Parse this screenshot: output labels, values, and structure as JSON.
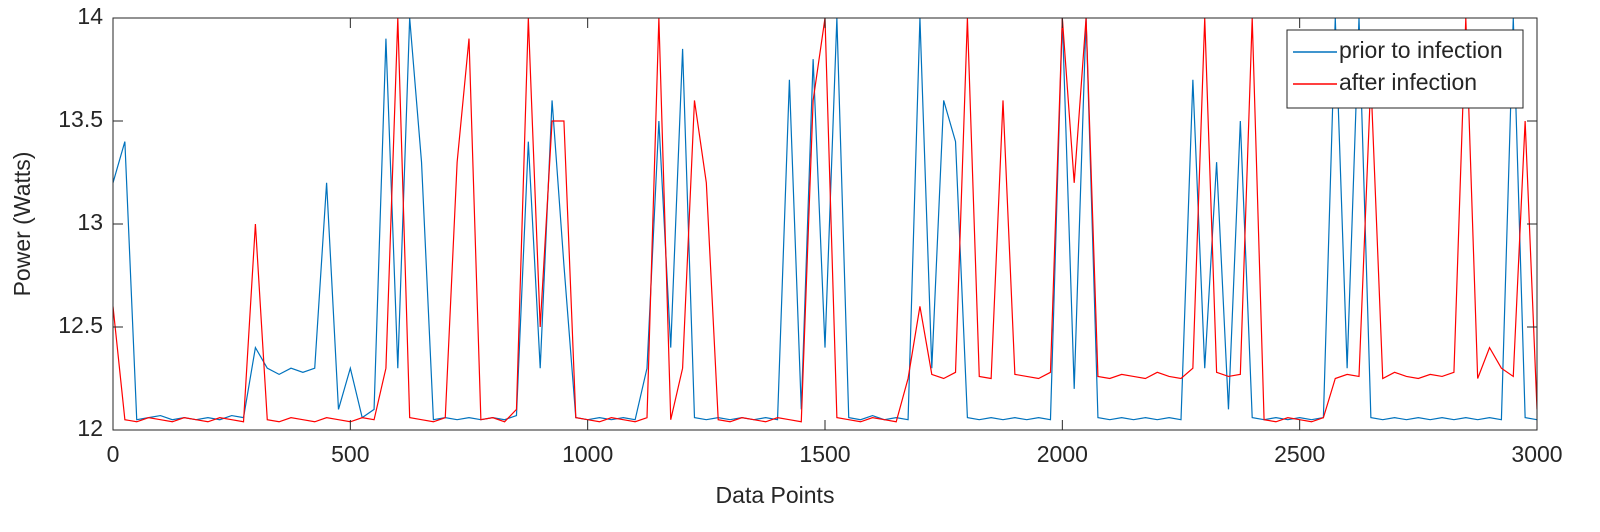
{
  "chart_data": {
    "type": "line",
    "xlabel": "Data Points",
    "ylabel": "Power (Watts)",
    "x": [
      0,
      25,
      50,
      75,
      100,
      125,
      150,
      175,
      200,
      225,
      250,
      275,
      300,
      325,
      350,
      375,
      400,
      425,
      450,
      475,
      500,
      525,
      550,
      575,
      600,
      625,
      650,
      675,
      700,
      725,
      750,
      775,
      800,
      825,
      850,
      875,
      900,
      925,
      950,
      975,
      1000,
      1025,
      1050,
      1075,
      1100,
      1125,
      1150,
      1175,
      1200,
      1225,
      1250,
      1275,
      1300,
      1325,
      1350,
      1375,
      1400,
      1425,
      1450,
      1475,
      1500,
      1525,
      1550,
      1575,
      1600,
      1625,
      1650,
      1675,
      1700,
      1725,
      1750,
      1775,
      1800,
      1825,
      1850,
      1875,
      1900,
      1925,
      1950,
      1975,
      2000,
      2025,
      2050,
      2075,
      2100,
      2125,
      2150,
      2175,
      2200,
      2225,
      2250,
      2275,
      2300,
      2325,
      2350,
      2375,
      2400,
      2425,
      2450,
      2475,
      2500,
      2525,
      2550,
      2575,
      2600,
      2625,
      2650,
      2675,
      2700,
      2725,
      2750,
      2775,
      2800,
      2825,
      2850,
      2875,
      2900,
      2925,
      2950,
      2975,
      3000
    ],
    "series": [
      {
        "name": "prior to infection",
        "color": "#0072bd",
        "values": [
          13.2,
          13.4,
          12.05,
          12.06,
          12.07,
          12.05,
          12.06,
          12.05,
          12.06,
          12.05,
          12.07,
          12.06,
          12.4,
          12.3,
          12.27,
          12.3,
          12.28,
          12.3,
          13.2,
          12.1,
          12.3,
          12.06,
          12.1,
          13.9,
          12.3,
          14,
          13.3,
          12.05,
          12.06,
          12.05,
          12.06,
          12.05,
          12.06,
          12.05,
          12.07,
          13.4,
          12.3,
          13.6,
          12.8,
          12.06,
          12.05,
          12.06,
          12.05,
          12.06,
          12.05,
          12.3,
          13.5,
          12.4,
          13.85,
          12.06,
          12.05,
          12.06,
          12.05,
          12.06,
          12.05,
          12.06,
          12.05,
          13.7,
          12.1,
          13.8,
          12.4,
          14,
          12.06,
          12.05,
          12.07,
          12.05,
          12.06,
          12.05,
          14,
          12.3,
          13.6,
          13.4,
          12.06,
          12.05,
          12.06,
          12.05,
          12.06,
          12.05,
          12.06,
          12.05,
          14,
          12.2,
          14,
          12.06,
          12.05,
          12.06,
          12.05,
          12.06,
          12.05,
          12.06,
          12.05,
          13.7,
          12.3,
          13.3,
          12.1,
          13.5,
          12.06,
          12.05,
          12.06,
          12.05,
          12.06,
          12.05,
          12.06,
          14,
          12.3,
          14,
          12.06,
          12.05,
          12.06,
          12.05,
          12.06,
          12.05,
          12.06,
          12.05,
          12.06,
          12.05,
          12.06,
          12.05,
          14,
          12.06,
          12.05
        ]
      },
      {
        "name": "after infection",
        "color": "#ff0000",
        "values": [
          12.6,
          12.05,
          12.04,
          12.06,
          12.05,
          12.04,
          12.06,
          12.05,
          12.04,
          12.06,
          12.05,
          12.04,
          13.0,
          12.05,
          12.04,
          12.06,
          12.05,
          12.04,
          12.06,
          12.05,
          12.04,
          12.06,
          12.05,
          12.3,
          14,
          12.06,
          12.05,
          12.04,
          12.06,
          13.3,
          13.9,
          12.05,
          12.06,
          12.04,
          12.1,
          14,
          12.5,
          13.5,
          13.5,
          12.06,
          12.05,
          12.04,
          12.06,
          12.05,
          12.04,
          12.06,
          14,
          12.05,
          12.3,
          13.6,
          13.2,
          12.05,
          12.04,
          12.06,
          12.05,
          12.04,
          12.06,
          12.05,
          12.04,
          13.6,
          14,
          12.06,
          12.05,
          12.04,
          12.06,
          12.05,
          12.04,
          12.25,
          12.6,
          12.27,
          12.25,
          12.28,
          14,
          12.26,
          12.25,
          13.6,
          12.27,
          12.26,
          12.25,
          12.28,
          14,
          13.2,
          14,
          12.26,
          12.25,
          12.27,
          12.26,
          12.25,
          12.28,
          12.26,
          12.25,
          12.3,
          14,
          12.28,
          12.26,
          12.27,
          14,
          12.05,
          12.04,
          12.06,
          12.05,
          12.04,
          12.06,
          12.25,
          12.27,
          12.26,
          13.7,
          12.25,
          12.28,
          12.26,
          12.25,
          12.27,
          12.26,
          12.28,
          14,
          12.25,
          12.4,
          12.3,
          12.26,
          13.5,
          12.1
        ]
      }
    ],
    "xlim": [
      0,
      3000
    ],
    "xticks": [
      0,
      500,
      1000,
      1500,
      2000,
      2500,
      3000
    ],
    "ylim": [
      12,
      14
    ],
    "yticks": [
      12,
      12.5,
      13,
      13.5,
      14
    ],
    "legend": "northeast"
  }
}
